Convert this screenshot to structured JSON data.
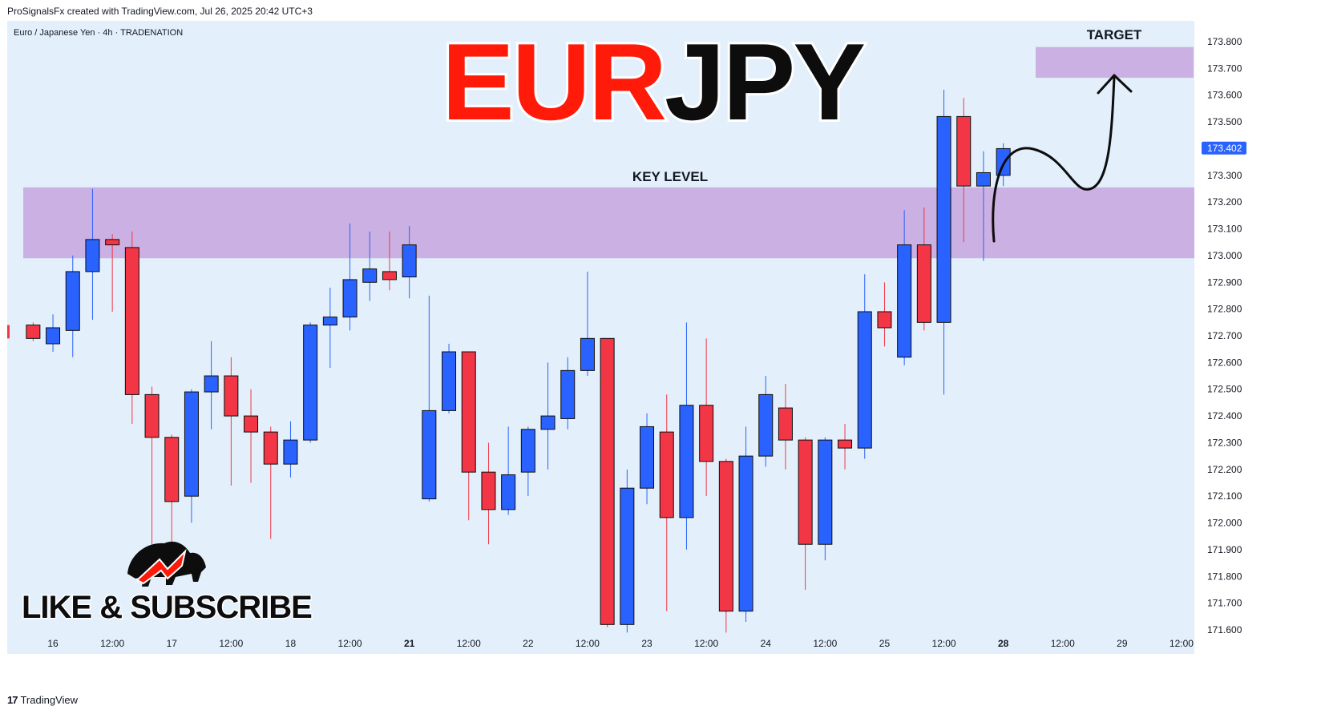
{
  "header": {
    "caption": "ProSignalsFx created with TradingView.com, Jul 26, 2025 20:42 UTC+3"
  },
  "footer": {
    "logo_mark": "17",
    "logo_text": "TradingView"
  },
  "overlay": {
    "title_red": "EUR",
    "title_black": "JPY",
    "zone_label": "KEY LEVEL",
    "target_label": "TARGET",
    "cta": "LIKE & SUBSCRIBE"
  },
  "colors": {
    "up": "#2962ff",
    "down": "#f23645",
    "background": "#ffffff",
    "chart_bg": "#e3f0fb",
    "zone": "#c8a8e0",
    "title_red": "#ff1a0a",
    "title_black": "#0d0d0d",
    "price_tag": "#2962ff"
  },
  "chart_data": {
    "type": "candlestick",
    "symbol_line": "Euro / Japanese Yen · 4h · TRADENATION",
    "ylim": [
      171.55,
      173.9
    ],
    "y_ticks": [
      173.8,
      173.7,
      173.6,
      173.5,
      173.4,
      173.3,
      173.2,
      173.1,
      173.0,
      172.9,
      172.8,
      172.7,
      172.6,
      172.5,
      172.4,
      172.3,
      172.2,
      172.1,
      172.0,
      171.9,
      171.8,
      171.7,
      171.6
    ],
    "y_tick_labels": [
      "173.800",
      "173.700",
      "173.600",
      "173.500",
      "173.400",
      "173.300",
      "173.200",
      "173.100",
      "173.000",
      "172.900",
      "172.800",
      "172.700",
      "172.600",
      "172.500",
      "172.400",
      "172.300",
      "172.200",
      "172.100",
      "172.000",
      "171.900",
      "171.800",
      "171.700",
      "171.600"
    ],
    "last_price": 173.402,
    "last_price_label": "173.402",
    "x_labels": [
      {
        "text": "16",
        "bar": 1.5,
        "bold": false
      },
      {
        "text": "12:00",
        "bar": 4.5,
        "bold": false
      },
      {
        "text": "17",
        "bar": 7.5,
        "bold": false
      },
      {
        "text": "12:00",
        "bar": 10.5,
        "bold": false
      },
      {
        "text": "18",
        "bar": 13.5,
        "bold": false
      },
      {
        "text": "12:00",
        "bar": 16.5,
        "bold": false
      },
      {
        "text": "21",
        "bar": 19.5,
        "bold": true
      },
      {
        "text": "12:00",
        "bar": 22.5,
        "bold": false
      },
      {
        "text": "22",
        "bar": 25.5,
        "bold": false
      },
      {
        "text": "12:00",
        "bar": 28.5,
        "bold": false
      },
      {
        "text": "23",
        "bar": 31.5,
        "bold": false
      },
      {
        "text": "12:00",
        "bar": 34.5,
        "bold": false
      },
      {
        "text": "24",
        "bar": 37.5,
        "bold": false
      },
      {
        "text": "12:00",
        "bar": 40.5,
        "bold": false
      },
      {
        "text": "25",
        "bar": 43.5,
        "bold": false
      },
      {
        "text": "12:00",
        "bar": 46.5,
        "bold": false
      },
      {
        "text": "28",
        "bar": 49.5,
        "bold": true
      },
      {
        "text": "12:00",
        "bar": 52.5,
        "bold": false
      },
      {
        "text": "29",
        "bar": 55.5,
        "bold": false
      },
      {
        "text": "12:00",
        "bar": 58.5,
        "bold": false
      }
    ],
    "candles": [
      {
        "o": 172.74,
        "h": 172.75,
        "l": 172.68,
        "c": 172.69
      },
      {
        "o": 172.67,
        "h": 172.78,
        "l": 172.64,
        "c": 172.73
      },
      {
        "o": 172.72,
        "h": 173.0,
        "l": 172.62,
        "c": 172.94
      },
      {
        "o": 172.94,
        "h": 173.25,
        "l": 172.76,
        "c": 173.06
      },
      {
        "o": 173.06,
        "h": 173.08,
        "l": 172.79,
        "c": 173.04
      },
      {
        "o": 173.03,
        "h": 173.09,
        "l": 172.37,
        "c": 172.48
      },
      {
        "o": 172.48,
        "h": 172.51,
        "l": 171.83,
        "c": 172.32
      },
      {
        "o": 172.32,
        "h": 172.33,
        "l": 171.84,
        "c": 172.08
      },
      {
        "o": 172.1,
        "h": 172.5,
        "l": 172.0,
        "c": 172.49
      },
      {
        "o": 172.49,
        "h": 172.68,
        "l": 172.35,
        "c": 172.55
      },
      {
        "o": 172.55,
        "h": 172.62,
        "l": 172.14,
        "c": 172.4
      },
      {
        "o": 172.4,
        "h": 172.5,
        "l": 172.15,
        "c": 172.34
      },
      {
        "o": 172.34,
        "h": 172.36,
        "l": 171.94,
        "c": 172.22
      },
      {
        "o": 172.22,
        "h": 172.38,
        "l": 172.17,
        "c": 172.31
      },
      {
        "o": 172.31,
        "h": 172.75,
        "l": 172.3,
        "c": 172.74
      },
      {
        "o": 172.74,
        "h": 172.88,
        "l": 172.58,
        "c": 172.77
      },
      {
        "o": 172.77,
        "h": 173.12,
        "l": 172.72,
        "c": 172.91
      },
      {
        "o": 172.9,
        "h": 173.09,
        "l": 172.83,
        "c": 172.95
      },
      {
        "o": 172.94,
        "h": 173.09,
        "l": 172.87,
        "c": 172.91
      },
      {
        "o": 172.92,
        "h": 173.11,
        "l": 172.84,
        "c": 173.04
      },
      {
        "o": 172.09,
        "h": 172.85,
        "l": 172.08,
        "c": 172.42
      },
      {
        "o": 172.42,
        "h": 172.67,
        "l": 172.41,
        "c": 172.64
      },
      {
        "o": 172.64,
        "h": 172.64,
        "l": 172.01,
        "c": 172.19
      },
      {
        "o": 172.19,
        "h": 172.3,
        "l": 171.92,
        "c": 172.05
      },
      {
        "o": 172.05,
        "h": 172.36,
        "l": 172.03,
        "c": 172.18
      },
      {
        "o": 172.19,
        "h": 172.36,
        "l": 172.1,
        "c": 172.35
      },
      {
        "o": 172.35,
        "h": 172.6,
        "l": 172.2,
        "c": 172.4
      },
      {
        "o": 172.39,
        "h": 172.62,
        "l": 172.35,
        "c": 172.57
      },
      {
        "o": 172.57,
        "h": 172.94,
        "l": 172.55,
        "c": 172.69
      },
      {
        "o": 172.69,
        "h": 172.69,
        "l": 171.61,
        "c": 171.62
      },
      {
        "o": 171.62,
        "h": 172.2,
        "l": 171.59,
        "c": 172.13
      },
      {
        "o": 172.13,
        "h": 172.41,
        "l": 172.07,
        "c": 172.36
      },
      {
        "o": 172.34,
        "h": 172.48,
        "l": 171.67,
        "c": 172.02
      },
      {
        "o": 172.02,
        "h": 172.75,
        "l": 171.9,
        "c": 172.44
      },
      {
        "o": 172.44,
        "h": 172.69,
        "l": 172.1,
        "c": 172.23
      },
      {
        "o": 172.23,
        "h": 172.24,
        "l": 171.59,
        "c": 171.67
      },
      {
        "o": 171.67,
        "h": 172.36,
        "l": 171.63,
        "c": 172.25
      },
      {
        "o": 172.25,
        "h": 172.55,
        "l": 172.21,
        "c": 172.48
      },
      {
        "o": 172.43,
        "h": 172.52,
        "l": 172.2,
        "c": 172.31
      },
      {
        "o": 172.31,
        "h": 172.32,
        "l": 171.75,
        "c": 171.92
      },
      {
        "o": 171.92,
        "h": 172.32,
        "l": 171.86,
        "c": 172.31
      },
      {
        "o": 172.31,
        "h": 172.37,
        "l": 172.2,
        "c": 172.28
      },
      {
        "o": 172.28,
        "h": 172.93,
        "l": 172.24,
        "c": 172.79
      },
      {
        "o": 172.79,
        "h": 172.9,
        "l": 172.66,
        "c": 172.73
      },
      {
        "o": 172.62,
        "h": 173.17,
        "l": 172.59,
        "c": 173.04
      },
      {
        "o": 173.04,
        "h": 173.18,
        "l": 172.72,
        "c": 172.75
      },
      {
        "o": 172.75,
        "h": 173.62,
        "l": 172.48,
        "c": 173.52
      },
      {
        "o": 173.52,
        "h": 173.59,
        "l": 173.05,
        "c": 173.26
      },
      {
        "o": 173.26,
        "h": 173.39,
        "l": 172.98,
        "c": 173.31
      },
      {
        "o": 173.3,
        "h": 173.42,
        "l": 173.26,
        "c": 173.4
      }
    ]
  }
}
